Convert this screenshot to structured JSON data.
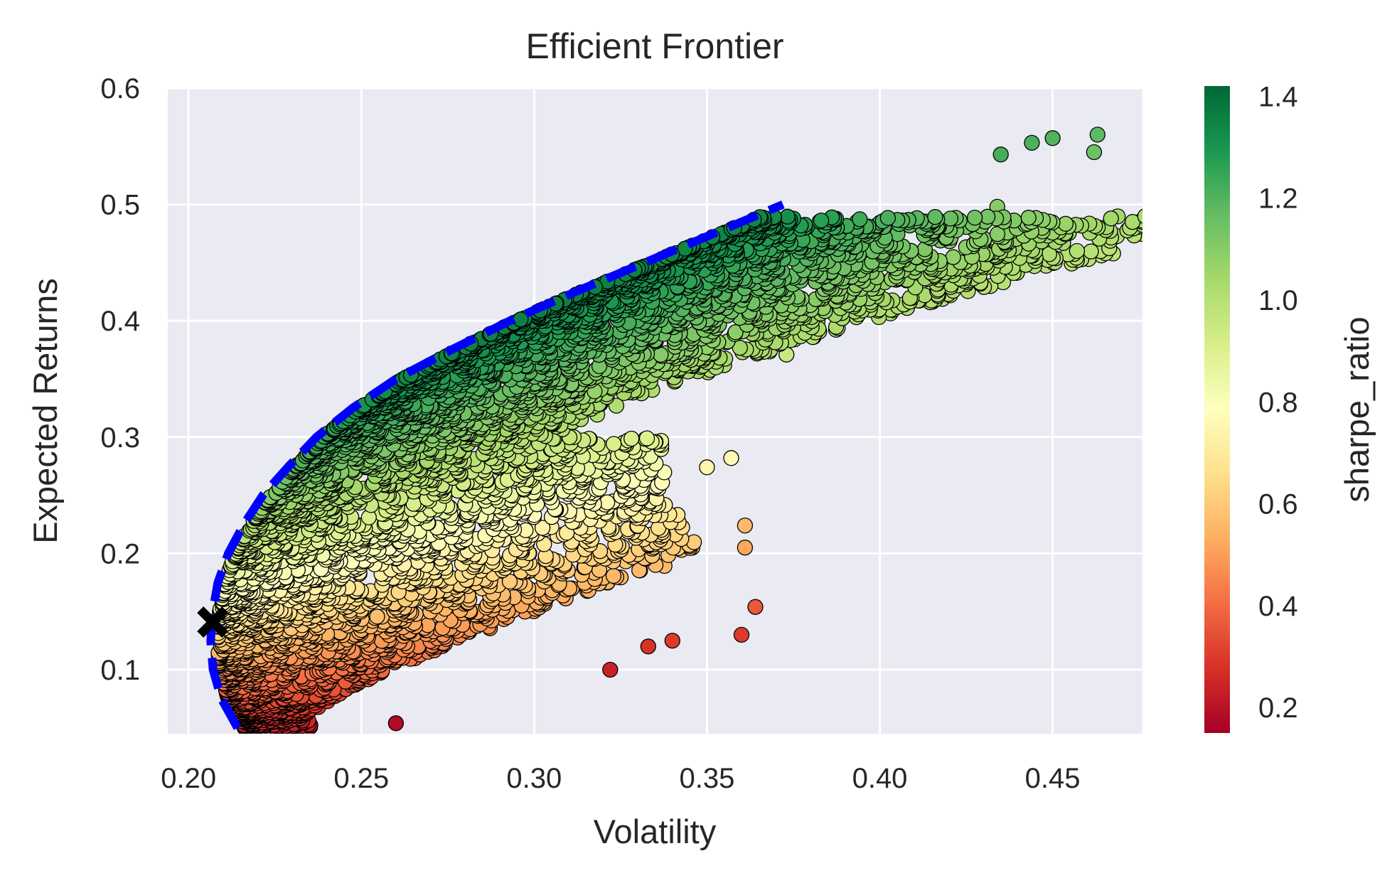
{
  "chart_data": {
    "type": "scatter",
    "title": "Efficient Frontier",
    "xlabel": "Volatility",
    "ylabel": "Expected Returns",
    "xlim": [
      0.194,
      0.476
    ],
    "ylim": [
      0.045,
      0.6
    ],
    "xticks": [
      0.2,
      0.25,
      0.3,
      0.35,
      0.4,
      0.45
    ],
    "xtick_labels": [
      "0.20",
      "0.25",
      "0.30",
      "0.35",
      "0.40",
      "0.45"
    ],
    "yticks": [
      0.1,
      0.2,
      0.3,
      0.4,
      0.5,
      0.6
    ],
    "ytick_labels": [
      "0.1",
      "0.2",
      "0.3",
      "0.4",
      "0.5",
      "0.6"
    ],
    "grid": true,
    "colorbar": {
      "label": "sharpe_ratio",
      "range": [
        0.15,
        1.42
      ],
      "cmap": "RdYlGn",
      "ticks": [
        0.2,
        0.4,
        0.6,
        0.8,
        1.0,
        1.2,
        1.4
      ],
      "tick_labels": [
        "0.2",
        "0.4",
        "0.6",
        "0.8",
        "1.0",
        "1.2",
        "1.4"
      ]
    },
    "frontier": {
      "style": "dashed",
      "color": "#0000ff",
      "points": [
        [
          0.2142,
          0.05
        ],
        [
          0.2095,
          0.075
        ],
        [
          0.2071,
          0.1
        ],
        [
          0.2064,
          0.125
        ],
        [
          0.207,
          0.15
        ],
        [
          0.2085,
          0.175
        ],
        [
          0.2115,
          0.2
        ],
        [
          0.216,
          0.225
        ],
        [
          0.2215,
          0.25
        ],
        [
          0.229,
          0.275
        ],
        [
          0.237,
          0.3
        ],
        [
          0.2475,
          0.325
        ],
        [
          0.26,
          0.35
        ],
        [
          0.276,
          0.375
        ],
        [
          0.293,
          0.4
        ],
        [
          0.312,
          0.425
        ],
        [
          0.332,
          0.45
        ],
        [
          0.352,
          0.475
        ],
        [
          0.372,
          0.5
        ]
      ]
    },
    "min_volatility_point": {
      "x": 0.207,
      "y": 0.141,
      "marker": "X",
      "color": "#000000"
    },
    "sample_points": [
      {
        "x": 0.463,
        "y": 0.56,
        "sharpe": 1.18
      },
      {
        "x": 0.462,
        "y": 0.545,
        "sharpe": 1.15
      },
      {
        "x": 0.45,
        "y": 0.557,
        "sharpe": 1.2
      },
      {
        "x": 0.444,
        "y": 0.553,
        "sharpe": 1.21
      },
      {
        "x": 0.435,
        "y": 0.543,
        "sharpe": 1.22
      },
      {
        "x": 0.434,
        "y": 0.498,
        "sharpe": 1.1
      },
      {
        "x": 0.415,
        "y": 0.474,
        "sharpe": 1.08
      },
      {
        "x": 0.395,
        "y": 0.433,
        "sharpe": 1.05
      },
      {
        "x": 0.382,
        "y": 0.4,
        "sharpe": 0.98
      },
      {
        "x": 0.373,
        "y": 0.371,
        "sharpe": 0.95
      },
      {
        "x": 0.357,
        "y": 0.282,
        "sharpe": 0.76
      },
      {
        "x": 0.35,
        "y": 0.274,
        "sharpe": 0.74
      },
      {
        "x": 0.361,
        "y": 0.224,
        "sharpe": 0.56
      },
      {
        "x": 0.361,
        "y": 0.205,
        "sharpe": 0.52
      },
      {
        "x": 0.364,
        "y": 0.154,
        "sharpe": 0.36
      },
      {
        "x": 0.36,
        "y": 0.13,
        "sharpe": 0.3
      },
      {
        "x": 0.34,
        "y": 0.125,
        "sharpe": 0.3
      },
      {
        "x": 0.333,
        "y": 0.12,
        "sharpe": 0.28
      },
      {
        "x": 0.322,
        "y": 0.1,
        "sharpe": 0.24
      },
      {
        "x": 0.26,
        "y": 0.054,
        "sharpe": 0.18
      }
    ]
  }
}
